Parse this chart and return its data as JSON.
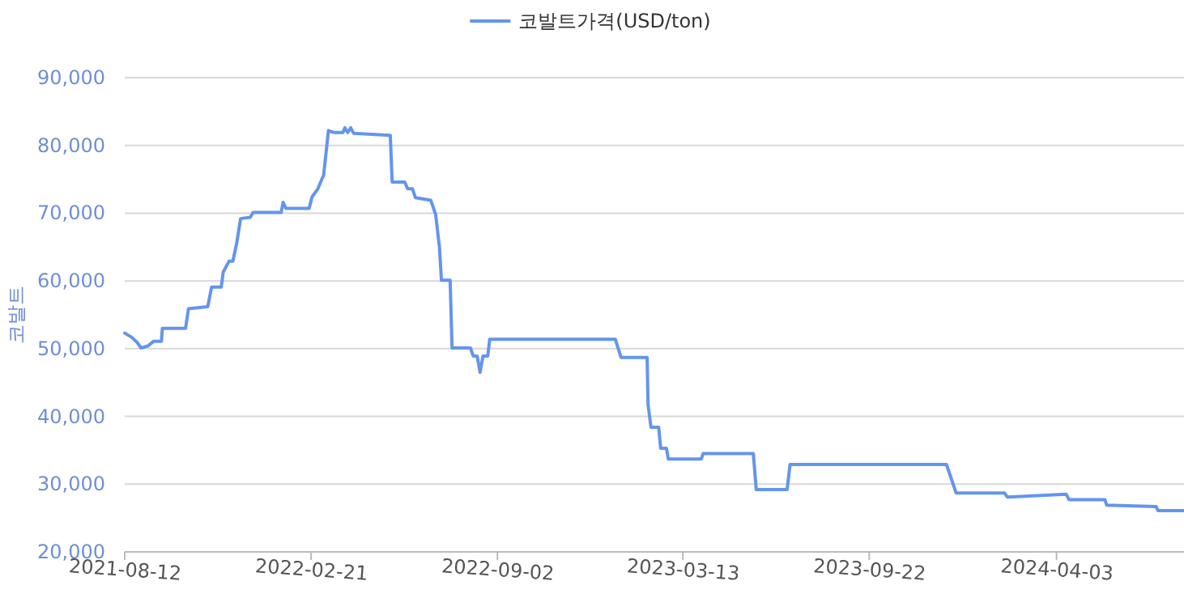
{
  "chart_data": {
    "type": "line",
    "ylabel": "코발트",
    "legend": "top",
    "grid": "y",
    "line_style": "solid",
    "x": [
      "2021-08-12",
      "2021-08-19",
      "2021-08-25",
      "2021-08-29",
      "2021-09-05",
      "2021-09-11",
      "2021-09-19",
      "2021-09-20",
      "2021-10-14",
      "2021-10-17",
      "2021-11-06",
      "2021-11-10",
      "2021-11-20",
      "2021-11-22",
      "2021-11-28",
      "2021-12-02",
      "2021-12-06",
      "2021-12-10",
      "2021-12-20",
      "2021-12-23",
      "2022-01-21",
      "2022-01-23",
      "2022-01-26",
      "2022-02-19",
      "2022-02-22",
      "2022-02-28",
      "2022-03-06",
      "2022-03-11",
      "2022-03-17",
      "2022-03-26",
      "2022-03-28",
      "2022-03-31",
      "2022-04-03",
      "2022-04-06",
      "2022-05-14",
      "2022-05-16",
      "2022-05-29",
      "2022-06-01",
      "2022-06-06",
      "2022-06-09",
      "2022-06-25",
      "2022-06-30",
      "2022-07-04",
      "2022-07-06",
      "2022-07-15",
      "2022-07-17",
      "2022-08-05",
      "2022-08-08",
      "2022-08-12",
      "2022-08-15",
      "2022-08-18",
      "2022-08-23",
      "2022-08-25",
      "2022-12-16",
      "2023-01-02",
      "2023-01-08",
      "2023-02-04",
      "2023-02-05",
      "2023-02-08",
      "2023-02-16",
      "2023-02-18",
      "2023-02-24",
      "2023-02-26",
      "2023-04-01",
      "2023-04-03",
      "2023-05-25",
      "2023-05-28",
      "2023-06-29",
      "2023-07-02",
      "2023-12-11",
      "2023-12-21",
      "2024-02-09",
      "2024-02-12",
      "2024-04-13",
      "2024-04-16",
      "2024-05-23",
      "2024-05-25",
      "2024-07-15",
      "2024-07-17",
      "2024-08-13"
    ],
    "series": [
      {
        "name": "코발트가격(USD/ton)",
        "color": "#6495ed",
        "values": [
          52300,
          51700,
          50900,
          50100,
          50400,
          51100,
          51100,
          53000,
          53000,
          55900,
          56200,
          59100,
          59100,
          61300,
          62900,
          62900,
          65600,
          69200,
          69400,
          70100,
          70100,
          71600,
          70700,
          70700,
          72400,
          73600,
          75600,
          82200,
          81900,
          81900,
          82600,
          81900,
          82600,
          81800,
          81500,
          74600,
          74600,
          73600,
          73600,
          72300,
          71900,
          69800,
          64900,
          60100,
          60100,
          50100,
          50100,
          48900,
          48900,
          46500,
          48900,
          48900,
          51400,
          51400,
          51400,
          48700,
          48700,
          41700,
          38400,
          38400,
          35300,
          35300,
          33700,
          33700,
          34500,
          34500,
          29200,
          29200,
          32900,
          32900,
          28700,
          28700,
          28100,
          28500,
          27700,
          27700,
          26900,
          26700,
          26100,
          26100
        ]
      }
    ],
    "xlim": [
      "2021-08-12",
      "2024-08-13"
    ],
    "xticks": [
      "2021-08-12",
      "2022-02-21",
      "2022-09-02",
      "2023-03-13",
      "2023-09-22",
      "2024-04-03"
    ],
    "ylim": [
      20000,
      90000
    ],
    "yticks": [
      {
        "value": 20000,
        "label": "20,000"
      },
      {
        "value": 30000,
        "label": "30,000"
      },
      {
        "value": 40000,
        "label": "40,000"
      },
      {
        "value": 50000,
        "label": "50,000"
      },
      {
        "value": 60000,
        "label": "60,000"
      },
      {
        "value": 70000,
        "label": "70,000"
      },
      {
        "value": 80000,
        "label": "80,000"
      },
      {
        "value": 90000,
        "label": "90,000"
      }
    ]
  }
}
